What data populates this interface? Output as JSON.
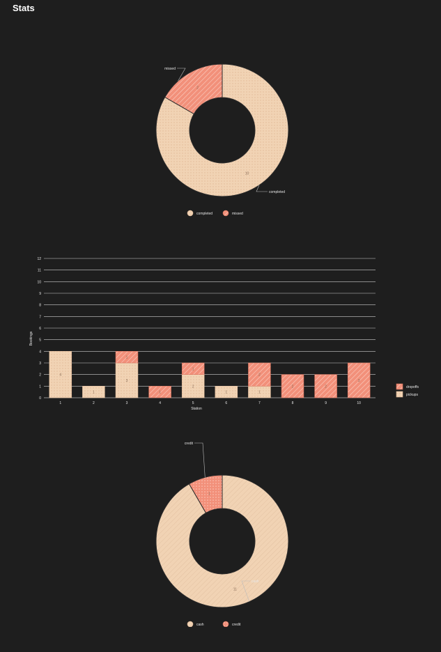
{
  "page": {
    "title": "Stats"
  },
  "colors": {
    "background": "#1e1e1e",
    "peach": "#f1d3b4",
    "peach_edge": "#e3bd9c",
    "salmon": "#f2907a",
    "salmon_edge": "#d9745e",
    "grid": "#cfcfcf",
    "text": "#e6e6e6",
    "value_text": "#8a6e58"
  },
  "chart_data": [
    {
      "type": "pie",
      "variant": "donut",
      "labels": [
        "completed",
        "missed"
      ],
      "values": [
        10,
        2
      ],
      "legend": [
        "completed",
        "missed"
      ],
      "legend_position": "bottom",
      "title": ""
    },
    {
      "type": "bar",
      "stacked": true,
      "xlabel": "Station",
      "ylabel": "Bookings",
      "categories": [
        "1",
        "2",
        "3",
        "4",
        "5",
        "6",
        "7",
        "8",
        "9",
        "10"
      ],
      "series": [
        {
          "name": "pickups",
          "values": [
            4,
            1,
            3,
            0,
            2,
            1,
            1,
            0,
            0,
            0
          ]
        },
        {
          "name": "dropoffs",
          "values": [
            0,
            0,
            1,
            1,
            1,
            0,
            2,
            2,
            2,
            3
          ]
        }
      ],
      "ylim": [
        0,
        12
      ],
      "yticks": [
        "0",
        "1",
        "2",
        "3",
        "4",
        "5",
        "6",
        "7",
        "8",
        "9",
        "10",
        "11",
        "12"
      ],
      "legend": [
        "dropoffs",
        "pickups"
      ],
      "legend_position": "right",
      "grid": true,
      "title": ""
    },
    {
      "type": "pie",
      "variant": "donut",
      "labels": [
        "cash",
        "credit"
      ],
      "values": [
        11,
        1
      ],
      "legend": [
        "cash",
        "credit"
      ],
      "legend_position": "bottom",
      "title": ""
    }
  ]
}
